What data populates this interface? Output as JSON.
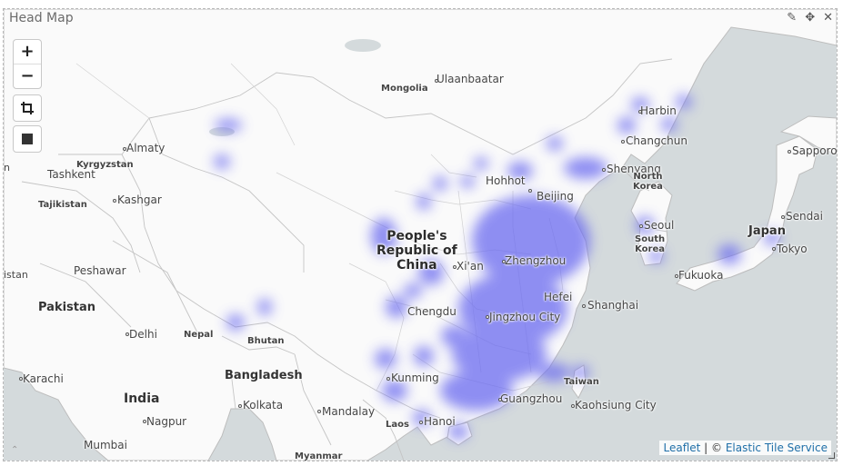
{
  "panel": {
    "title": "Head Map",
    "edit_icon": "pencil-icon",
    "move_icon": "move-icon",
    "close_icon": "close-icon"
  },
  "controls": {
    "zoom_in": "+",
    "zoom_out": "−",
    "crop_icon": "crop-icon",
    "draw_icon": "square-icon"
  },
  "colors": {
    "water": "#d4dadc",
    "land": "#fafafa",
    "border": "#b8b8b8",
    "heat": "#6a6af0"
  },
  "attribution": {
    "leaflet": "Leaflet",
    "separator": " | © ",
    "service": "Elastic Tile Service"
  },
  "labels": {
    "mongolia": "Mongolia",
    "ulaanbaatar": "Ulaanbaatar",
    "harbin": "Harbin",
    "changchun": "Changchun",
    "sapporo": "Sapporo",
    "almaty": "Almaty",
    "kyrgyzstan": "Kyrgyzstan",
    "tashkent": "Tashkent",
    "tajikistan": "Tajikistan",
    "kashgar": "Kashgar",
    "shenyang": "Shenyang",
    "north_korea_1": "North",
    "north_korea_2": "Korea",
    "hohhot": "Hohhot",
    "beijing": "Beijing",
    "sendai": "Sendai",
    "seoul": "Seoul",
    "japan": "Japan",
    "south_korea_1": "South",
    "south_korea_2": "Korea",
    "tokyo": "Tokyo",
    "china_1": "People's",
    "china_2": "Republic of",
    "china_3": "China",
    "xian": "Xi'an",
    "zhengzhou": "Zhengzhou",
    "peshawar": "Peshawar",
    "fukuoka": "Fukuoka",
    "hefei": "Hefei",
    "pakistan": "Pakistan",
    "shanghai": "Shanghai",
    "chengdu": "Chengdu",
    "jingzhou": "Jingzhou City",
    "delhi": "Delhi",
    "nepal": "Nepal",
    "bhutan": "Bhutan",
    "karachi": "Karachi",
    "bangladesh": "Bangladesh",
    "kunming": "Kunming",
    "taiwan": "Taiwan",
    "india": "India",
    "guangzhou": "Guangzhou",
    "kaohsiung": "Kaohsiung City",
    "kolkata": "Kolkata",
    "mandalay": "Mandalay",
    "nagpur": "Nagpur",
    "laos": "Laos",
    "hanoi": "Hanoi",
    "mumbai": "Mumbai",
    "myanmar": "Myanmar",
    "istan": "istan",
    "edge_n": "n"
  }
}
